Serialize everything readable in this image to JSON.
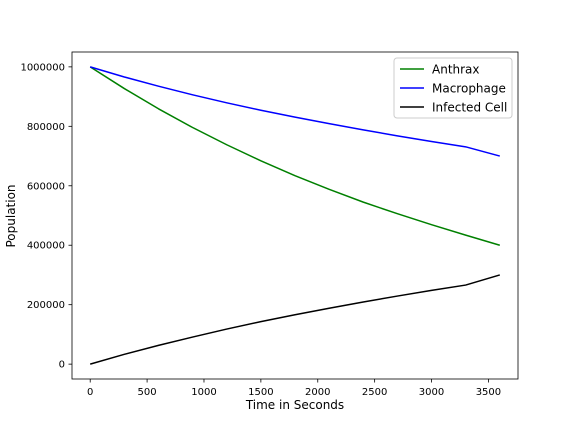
{
  "chart_data": {
    "type": "line",
    "title": "",
    "xlabel": "Time in Seconds",
    "ylabel": "Population",
    "xlim": [
      -160,
      3760
    ],
    "ylim": [
      -50000,
      1050000
    ],
    "xticks": [
      0,
      500,
      1000,
      1500,
      2000,
      2500,
      3000,
      3500
    ],
    "yticks": [
      0,
      200000,
      400000,
      600000,
      800000,
      1000000
    ],
    "x": [
      0,
      300,
      600,
      900,
      1200,
      1500,
      1800,
      2100,
      2400,
      2700,
      3000,
      3300,
      3600
    ],
    "legend_position": "upper-right",
    "grid": false,
    "series": [
      {
        "name": "Anthrax",
        "color": "#008000",
        "values": [
          1000000,
          927000,
          859000,
          796000,
          738000,
          684000,
          634000,
          588000,
          545000,
          506000,
          469000,
          434000,
          400000
        ]
      },
      {
        "name": "Macrophage",
        "color": "#0000ff",
        "values": [
          1000000,
          966000,
          935000,
          906000,
          879000,
          854000,
          831000,
          809000,
          788000,
          768000,
          749000,
          731000,
          700000
        ]
      },
      {
        "name": "Infected Cell",
        "color": "#000000",
        "values": [
          0,
          33000,
          63000,
          91000,
          118000,
          143000,
          166000,
          188000,
          209000,
          229000,
          248000,
          266000,
          300000
        ]
      }
    ]
  }
}
